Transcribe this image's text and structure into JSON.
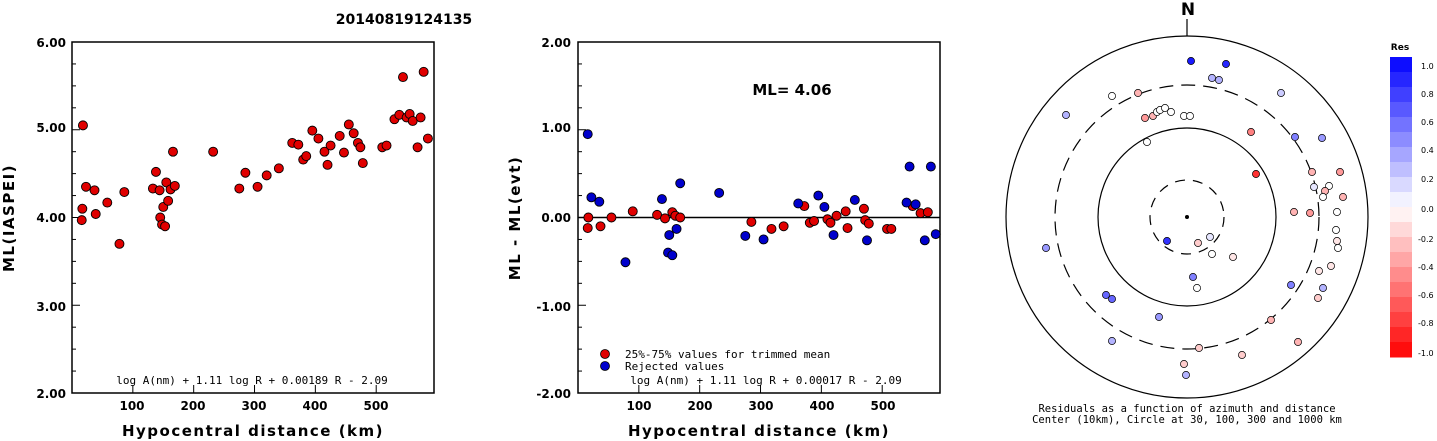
{
  "title": "20140819124135",
  "colors": {
    "red": "#e00000",
    "blue": "#0000cc",
    "axis": "#000000"
  },
  "chart_data": [
    {
      "type": "scatter",
      "xlabel": "Hypocentral distance (km)",
      "ylabel": "ML(IASPEI)",
      "xlim": [
        0,
        595
      ],
      "ylim": [
        2.0,
        6.0
      ],
      "xticks": [
        "100",
        "200",
        "300",
        "400",
        "500"
      ],
      "yticks": [
        "2.00",
        "3.00",
        "4.00",
        "5.00",
        "6.00"
      ],
      "formula": "log A(nm) + 1.11 log R + 0.00189 R - 2.09",
      "points": [
        [
          16,
          3.97
        ],
        [
          17,
          4.1
        ],
        [
          18,
          5.05
        ],
        [
          23,
          4.35
        ],
        [
          37,
          4.31
        ],
        [
          39,
          4.04
        ],
        [
          58,
          4.17
        ],
        [
          78,
          3.7
        ],
        [
          86,
          4.29
        ],
        [
          133,
          4.33
        ],
        [
          138,
          4.52
        ],
        [
          144,
          4.31
        ],
        [
          145,
          4.0
        ],
        [
          148,
          3.92
        ],
        [
          150,
          4.12
        ],
        [
          153,
          3.9
        ],
        [
          155,
          4.4
        ],
        [
          158,
          4.19
        ],
        [
          162,
          4.32
        ],
        [
          166,
          4.75
        ],
        [
          169,
          4.36
        ],
        [
          232,
          4.75
        ],
        [
          275,
          4.33
        ],
        [
          285,
          4.51
        ],
        [
          305,
          4.35
        ],
        [
          320,
          4.48
        ],
        [
          340,
          4.56
        ],
        [
          362,
          4.85
        ],
        [
          372,
          4.83
        ],
        [
          380,
          4.66
        ],
        [
          385,
          4.7
        ],
        [
          395,
          4.99
        ],
        [
          405,
          4.9
        ],
        [
          415,
          4.75
        ],
        [
          420,
          4.6
        ],
        [
          425,
          4.82
        ],
        [
          440,
          4.93
        ],
        [
          447,
          4.74
        ],
        [
          455,
          5.06
        ],
        [
          463,
          4.96
        ],
        [
          470,
          4.85
        ],
        [
          474,
          4.8
        ],
        [
          478,
          4.62
        ],
        [
          510,
          4.8
        ],
        [
          517,
          4.82
        ],
        [
          530,
          5.12
        ],
        [
          538,
          5.17
        ],
        [
          544,
          5.6
        ],
        [
          550,
          5.14
        ],
        [
          555,
          5.18
        ],
        [
          560,
          5.1
        ],
        [
          568,
          4.8
        ],
        [
          573,
          5.14
        ],
        [
          578,
          5.66
        ],
        [
          585,
          4.9
        ]
      ]
    },
    {
      "type": "scatter",
      "xlabel": "Hypocentral distance (km)",
      "ylabel": "ML - ML(evt)",
      "xlim": [
        0,
        595
      ],
      "ylim": [
        -2.0,
        2.0
      ],
      "xticks": [
        "100",
        "200",
        "300",
        "400",
        "500"
      ],
      "yticks": [
        "-2.00",
        "-1.00",
        "0.00",
        "1.00",
        "2.00"
      ],
      "annotation": "ML= 4.06",
      "formula": "log A(nm) + 1.11 log R + 0.00017 R - 2.09",
      "legend": [
        "25%-75% values for trimmed mean",
        "Rejected values"
      ],
      "red_points": [
        [
          16,
          -0.12
        ],
        [
          17,
          0.0
        ],
        [
          37,
          -0.1
        ],
        [
          55,
          0.0
        ],
        [
          90,
          0.07
        ],
        [
          130,
          0.03
        ],
        [
          143,
          -0.01
        ],
        [
          155,
          0.06
        ],
        [
          160,
          0.02
        ],
        [
          168,
          0.0
        ],
        [
          285,
          -0.05
        ],
        [
          318,
          -0.13
        ],
        [
          338,
          -0.1
        ],
        [
          372,
          0.13
        ],
        [
          381,
          -0.06
        ],
        [
          388,
          -0.04
        ],
        [
          410,
          -0.02
        ],
        [
          415,
          -0.06
        ],
        [
          425,
          0.02
        ],
        [
          440,
          0.07
        ],
        [
          443,
          -0.12
        ],
        [
          470,
          0.1
        ],
        [
          472,
          -0.03
        ],
        [
          478,
          -0.07
        ],
        [
          508,
          -0.13
        ],
        [
          515,
          -0.13
        ],
        [
          550,
          0.13
        ],
        [
          563,
          0.05
        ],
        [
          575,
          0.06
        ]
      ],
      "blue_points": [
        [
          16,
          0.95
        ],
        [
          22,
          0.23
        ],
        [
          35,
          0.18
        ],
        [
          78,
          -0.51
        ],
        [
          138,
          0.21
        ],
        [
          148,
          -0.4
        ],
        [
          150,
          -0.2
        ],
        [
          155,
          -0.43
        ],
        [
          162,
          -0.13
        ],
        [
          168,
          0.39
        ],
        [
          232,
          0.28
        ],
        [
          275,
          -0.21
        ],
        [
          305,
          -0.25
        ],
        [
          362,
          0.16
        ],
        [
          395,
          0.25
        ],
        [
          405,
          0.12
        ],
        [
          420,
          -0.2
        ],
        [
          455,
          0.2
        ],
        [
          475,
          -0.26
        ],
        [
          540,
          0.17
        ],
        [
          545,
          0.58
        ],
        [
          555,
          0.15
        ],
        [
          570,
          -0.26
        ],
        [
          580,
          0.58
        ],
        [
          588,
          -0.19
        ]
      ]
    }
  ],
  "polar": {
    "north_label": "N",
    "caption_line1": "Residuals as a function of azimuth and distance",
    "caption_line2": "Center (10km), Circle at 30, 100, 300 and 1000 km",
    "points": [
      [
        1191,
        61,
        0.9
      ],
      [
        1226,
        64,
        0.85
      ],
      [
        1212,
        78,
        0.3
      ],
      [
        1219,
        80,
        0.3
      ],
      [
        1138,
        93,
        -0.3
      ],
      [
        1112,
        96,
        0.0
      ],
      [
        1281,
        93,
        0.2
      ],
      [
        1066,
        115,
        0.3
      ],
      [
        1145,
        118,
        -0.4
      ],
      [
        1153,
        116,
        -0.3
      ],
      [
        1157,
        112,
        0.0
      ],
      [
        1160,
        110,
        0.0
      ],
      [
        1165,
        108,
        0.0
      ],
      [
        1171,
        112,
        0.0
      ],
      [
        1184,
        116,
        0.0
      ],
      [
        1190,
        116,
        0.0
      ],
      [
        1251,
        132,
        -0.5
      ],
      [
        1295,
        137,
        0.5
      ],
      [
        1147,
        142,
        0.0
      ],
      [
        1322,
        138,
        0.4
      ],
      [
        1312,
        172,
        -0.3
      ],
      [
        1340,
        172,
        -0.4
      ],
      [
        1256,
        174,
        -0.8
      ],
      [
        1314,
        187,
        0.1
      ],
      [
        1329,
        186,
        0.0
      ],
      [
        1325,
        191,
        -0.3
      ],
      [
        1323,
        197,
        0.0
      ],
      [
        1343,
        197,
        -0.3
      ],
      [
        1294,
        212,
        -0.3
      ],
      [
        1337,
        212,
        0.0
      ],
      [
        1310,
        213,
        -0.4
      ],
      [
        1336,
        230,
        0.0
      ],
      [
        1337,
        241,
        -0.1
      ],
      [
        1167,
        241,
        0.8
      ],
      [
        1198,
        243,
        -0.2
      ],
      [
        1210,
        237,
        0.1
      ],
      [
        1338,
        248,
        0.0
      ],
      [
        1212,
        254,
        0.0
      ],
      [
        1233,
        257,
        -0.1
      ],
      [
        1331,
        266,
        -0.1
      ],
      [
        1046,
        248,
        0.4
      ],
      [
        1319,
        271,
        -0.1
      ],
      [
        1193,
        277,
        0.5
      ],
      [
        1197,
        288,
        0.0
      ],
      [
        1291,
        285,
        0.5
      ],
      [
        1323,
        288,
        0.3
      ],
      [
        1318,
        298,
        -0.2
      ],
      [
        1106,
        295,
        0.6
      ],
      [
        1112,
        299,
        0.6
      ],
      [
        1159,
        317,
        0.4
      ],
      [
        1271,
        320,
        -0.3
      ],
      [
        1112,
        341,
        0.3
      ],
      [
        1298,
        342,
        -0.3
      ],
      [
        1199,
        348,
        -0.2
      ],
      [
        1242,
        355,
        -0.2
      ],
      [
        1184,
        364,
        -0.2
      ],
      [
        1186,
        375,
        0.3
      ]
    ]
  },
  "colorbar": {
    "title": "Res",
    "labels": [
      "1.0",
      "0.8",
      "0.6",
      "0.4",
      "0.2",
      "0.0",
      "-0.2",
      "-0.4",
      "-0.6",
      "-0.8",
      "-1.0"
    ]
  }
}
